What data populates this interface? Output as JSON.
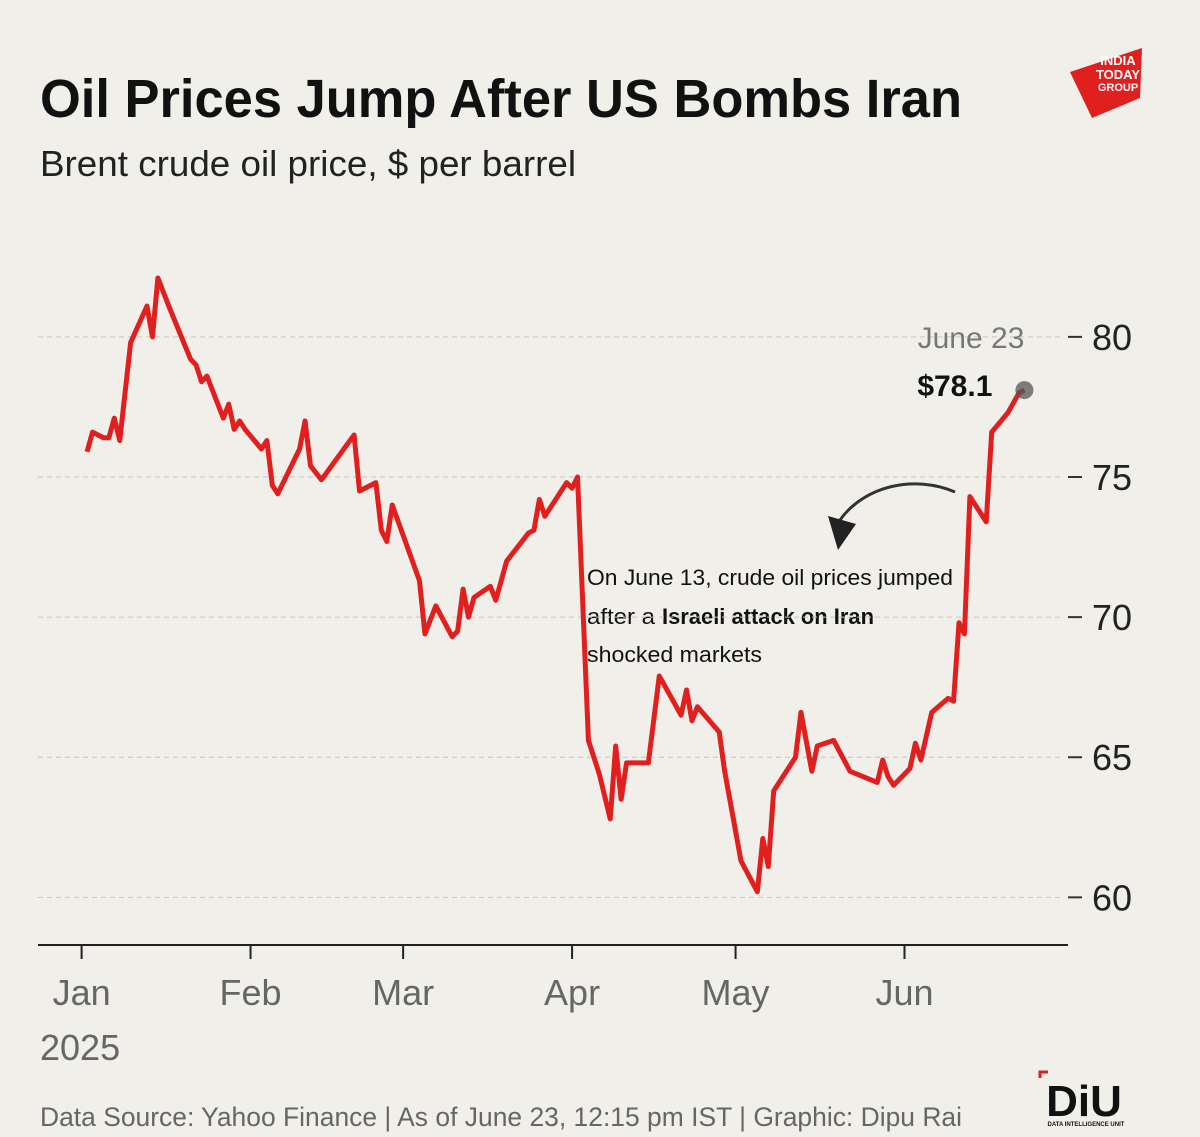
{
  "chart_data": {
    "type": "line",
    "title": "Oil Prices Jump After US Bombs Iran",
    "subtitle": "Brent crude oil price, $ per barrel",
    "brand": [
      "INDIA",
      "TODAY",
      "GROUP"
    ],
    "x_year": "2025",
    "x": [
      1,
      2,
      4,
      5,
      6,
      7,
      9,
      12,
      13,
      14,
      16,
      20,
      21,
      22,
      23,
      26,
      27,
      28,
      29,
      30,
      33,
      34,
      35,
      36,
      40,
      41,
      42,
      44,
      50,
      51,
      54,
      55,
      56,
      57,
      62,
      63,
      65,
      68,
      69,
      70,
      71,
      72,
      75,
      76,
      78,
      82,
      83,
      84,
      85,
      89,
      90,
      91,
      93,
      95,
      97,
      98,
      99,
      100,
      103,
      104,
      106,
      110,
      111,
      112,
      113,
      117,
      118,
      121,
      124,
      125,
      126,
      127,
      131,
      132,
      134,
      135,
      138,
      141,
      146,
      147,
      148,
      149,
      152,
      153,
      154,
      156,
      159,
      160,
      161,
      162,
      163,
      166,
      167,
      170,
      172,
      173
    ],
    "values": [
      75.9,
      76.6,
      76.4,
      76.4,
      77.1,
      76.3,
      79.8,
      81.1,
      80.0,
      82.1,
      81.1,
      79.2,
      79.0,
      78.4,
      78.6,
      77.1,
      77.6,
      76.7,
      77.0,
      76.7,
      76.0,
      76.3,
      74.7,
      74.4,
      76.0,
      77.0,
      75.4,
      74.9,
      76.5,
      74.5,
      74.8,
      73.1,
      72.7,
      74.0,
      71.3,
      69.4,
      70.4,
      69.3,
      69.5,
      71.0,
      70.0,
      70.7,
      71.1,
      70.6,
      72.0,
      73.0,
      73.1,
      74.2,
      73.6,
      74.8,
      74.6,
      75.0,
      65.6,
      64.4,
      62.8,
      65.4,
      63.5,
      64.8,
      64.8,
      64.8,
      67.9,
      66.5,
      67.4,
      66.3,
      66.8,
      65.9,
      64.5,
      61.3,
      60.2,
      62.1,
      61.1,
      63.8,
      65.0,
      66.6,
      64.5,
      65.4,
      65.6,
      64.5,
      64.1,
      64.9,
      64.3,
      64.0,
      64.6,
      65.5,
      64.9,
      66.6,
      67.1,
      67.0,
      69.8,
      69.4,
      74.3,
      73.4,
      76.6,
      77.3,
      78.0,
      78.1
    ],
    "color": "#e11f1f",
    "xlim": [
      -8,
      181
    ],
    "xticks": [
      {
        "value": 0,
        "label": "Jan"
      },
      {
        "value": 31,
        "label": "Feb"
      },
      {
        "value": 59,
        "label": "Mar"
      },
      {
        "value": 90,
        "label": "Apr"
      },
      {
        "value": 120,
        "label": "May"
      },
      {
        "value": 151,
        "label": "Jun"
      }
    ],
    "ylim": [
      58.3,
      83.1
    ],
    "yticks": [
      60,
      65,
      70,
      75,
      80
    ],
    "grid": true,
    "end_label": {
      "date": "June 23",
      "value": "$78.1"
    },
    "annotation": [
      "On June 13, crude oil prices jumped",
      "after a",
      "Israeli attack on Iran",
      "shocked markets"
    ],
    "source": "Data Source: Yahoo Finance | As of June 23, 12:15 pm IST | Graphic: Dipu Rai",
    "logo": "DiU",
    "logo_sub": "DATA INTELLIGENCE UNIT"
  }
}
